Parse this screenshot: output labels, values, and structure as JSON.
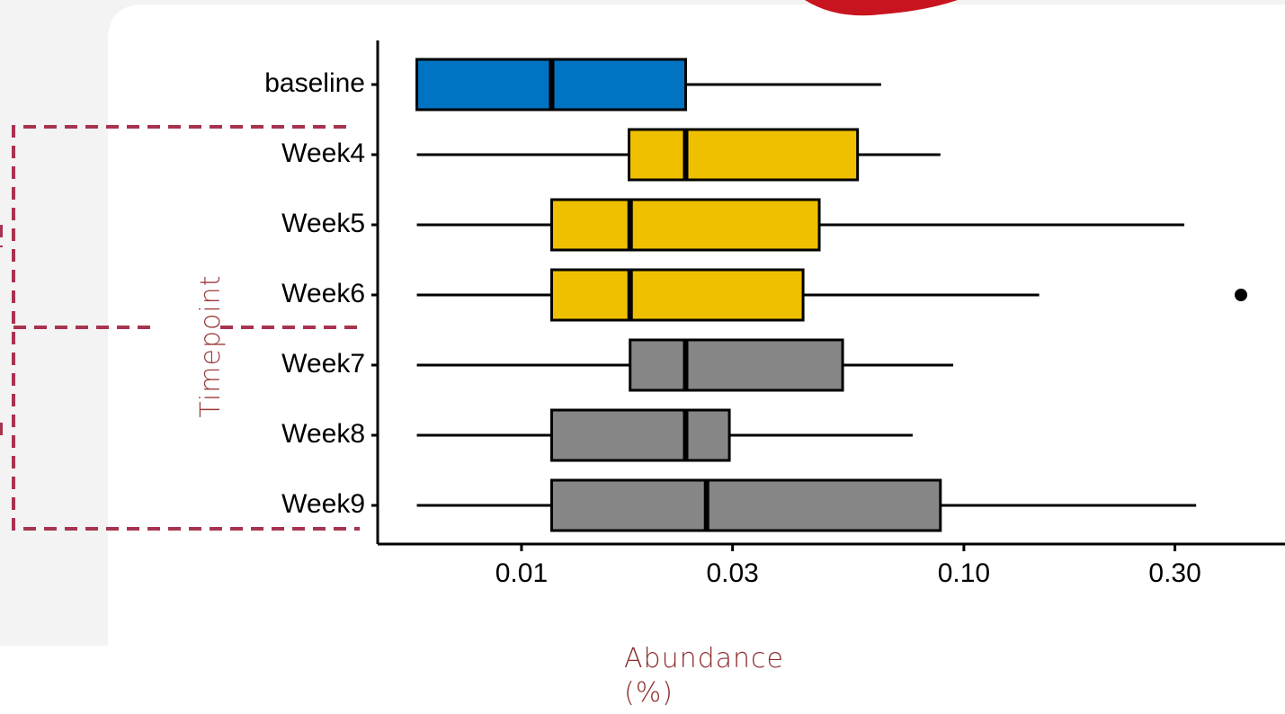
{
  "chart_data": {
    "type": "box",
    "orientation": "horizontal",
    "xscale": "log",
    "categories": [
      "baseline",
      "Week4",
      "Week5",
      "Week6",
      "Week7",
      "Week8",
      "Week9"
    ],
    "colors": [
      "#0073c2",
      "#efc000",
      "#efc000",
      "#efc000",
      "#868686",
      "#868686",
      "#868686"
    ],
    "whisker_low": [
      0.0058,
      0.0058,
      0.0058,
      0.0058,
      0.0058,
      0.0058,
      0.0058
    ],
    "q1": [
      0.0058,
      0.0175,
      0.0117,
      0.0117,
      0.0176,
      0.0117,
      0.0117
    ],
    "median": [
      0.0117,
      0.0235,
      0.0176,
      0.0176,
      0.0235,
      0.0235,
      0.0262
    ],
    "q3": [
      0.0235,
      0.0575,
      0.0471,
      0.0433,
      0.0532,
      0.0295,
      0.0885
    ],
    "whisker_high": [
      0.065,
      0.0885,
      0.315,
      0.148,
      0.0946,
      0.0766,
      0.335
    ],
    "outliers": [
      [],
      [],
      [],
      [
        0.423
      ],
      [],
      [],
      []
    ],
    "xlim": [
      0.00473,
      0.532
    ],
    "xticks": [
      0.01,
      0.03,
      {
        "value": 0.1,
        "label": "0.10"
      },
      {
        "value": 0.3,
        "label": "0.30"
      }
    ],
    "xlabel": "Abundance (%)",
    "ylabel": "Timepoint"
  }
}
